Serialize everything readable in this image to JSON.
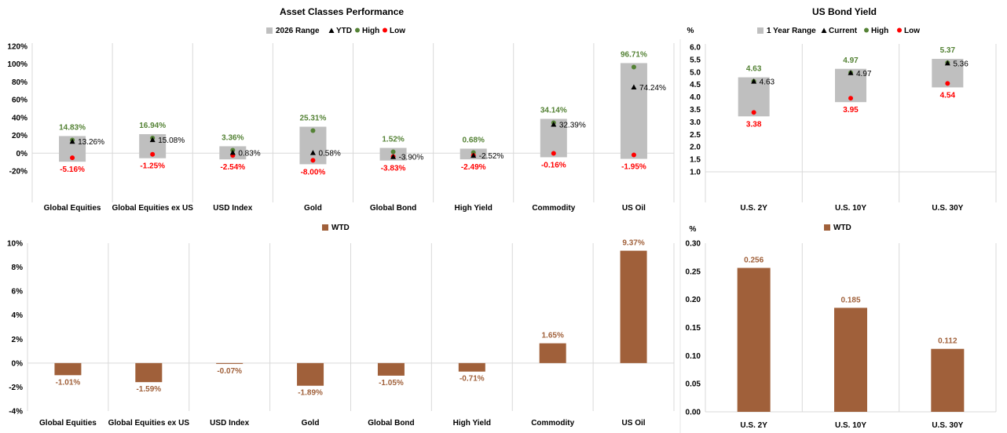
{
  "colors": {
    "range": "#bfbfbf",
    "ytd": "#000000",
    "high": "#548235",
    "low": "#ff0000",
    "wtd": "#a0603a",
    "grid": "#d9d9d9",
    "axis": "#d9d9d9"
  },
  "chart_data": [
    {
      "type": "range",
      "title": "Asset Classes Performance",
      "legend": [
        "2026 Range",
        "YTD",
        "High",
        "Low"
      ],
      "ylim": [
        -20,
        120
      ],
      "yticks": [
        "-20%",
        "0%",
        "20%",
        "40%",
        "60%",
        "80%",
        "100%",
        "120%"
      ],
      "ytick_values": [
        -20,
        0,
        20,
        40,
        60,
        80,
        100,
        120
      ],
      "categories": [
        "Global Equities",
        "Global Equities ex US",
        "USD Index",
        "Gold",
        "Global Bond",
        "High Yield",
        "Commodity",
        "US Oil"
      ],
      "high": [
        14.83,
        16.94,
        3.36,
        25.31,
        1.52,
        0.68,
        34.14,
        96.71
      ],
      "low": [
        -5.16,
        -1.25,
        -2.54,
        -8.0,
        -3.83,
        -2.49,
        -0.16,
        -1.95
      ],
      "ytd": [
        13.26,
        15.08,
        0.83,
        0.58,
        -3.9,
        -2.52,
        32.39,
        74.24
      ],
      "high_labels": [
        "14.83%",
        "16.94%",
        "3.36%",
        "25.31%",
        "1.52%",
        "0.68%",
        "34.14%",
        "96.71%"
      ],
      "low_labels": [
        "-5.16%",
        "-1.25%",
        "-2.54%",
        "-8.00%",
        "-3.83%",
        "-2.49%",
        "-0.16%",
        "-1.95%"
      ],
      "ytd_labels": [
        "13.26%",
        "15.08%",
        "0.83%",
        "0.58%",
        "-3.90%",
        "-2.52%",
        "32.39%",
        "74.24%"
      ]
    },
    {
      "type": "range",
      "title": "US Bond Yield",
      "ylabel": "%",
      "legend": [
        "1 Year Range",
        "Current",
        "High",
        "Low"
      ],
      "ylim": [
        1.0,
        6.0
      ],
      "yticks": [
        "1.0",
        "1.5",
        "2.0",
        "2.5",
        "3.0",
        "3.5",
        "4.0",
        "4.5",
        "5.0",
        "5.5",
        "6.0"
      ],
      "ytick_values": [
        1.0,
        1.5,
        2.0,
        2.5,
        3.0,
        3.5,
        4.0,
        4.5,
        5.0,
        5.5,
        6.0
      ],
      "categories": [
        "U.S. 2Y",
        "U.S. 10Y",
        "U.S. 30Y"
      ],
      "high": [
        4.63,
        4.97,
        5.37
      ],
      "low": [
        3.38,
        3.95,
        4.54
      ],
      "ytd": [
        4.63,
        4.97,
        5.36
      ],
      "high_labels": [
        "4.63",
        "4.97",
        "5.37"
      ],
      "low_labels": [
        "3.38",
        "3.95",
        "4.54"
      ],
      "ytd_labels": [
        "4.63",
        "4.97",
        "5.36"
      ]
    },
    {
      "type": "bar",
      "legend": [
        "WTD"
      ],
      "ylim": [
        -4,
        10
      ],
      "yticks": [
        "-4%",
        "-2%",
        "0%",
        "2%",
        "4%",
        "6%",
        "8%",
        "10%"
      ],
      "ytick_values": [
        -4,
        -2,
        0,
        2,
        4,
        6,
        8,
        10
      ],
      "categories": [
        "Global Equities",
        "Global Equities ex US",
        "USD Index",
        "Gold",
        "Global Bond",
        "High Yield",
        "Commodity",
        "US Oil"
      ],
      "values": [
        -1.01,
        -1.59,
        -0.07,
        -1.89,
        -1.05,
        -0.71,
        1.65,
        9.37
      ],
      "value_labels": [
        "-1.01%",
        "-1.59%",
        "-0.07%",
        "-1.89%",
        "-1.05%",
        "-0.71%",
        "1.65%",
        "9.37%"
      ]
    },
    {
      "type": "bar",
      "ylabel": "%",
      "legend": [
        "WTD"
      ],
      "ylim": [
        0,
        0.3
      ],
      "yticks": [
        "0.00",
        "0.05",
        "0.10",
        "0.15",
        "0.20",
        "0.25",
        "0.30"
      ],
      "ytick_values": [
        0,
        0.05,
        0.1,
        0.15,
        0.2,
        0.25,
        0.3
      ],
      "categories": [
        "U.S. 2Y",
        "U.S. 10Y",
        "U.S. 30Y"
      ],
      "values": [
        0.256,
        0.185,
        0.112
      ],
      "value_labels": [
        "0.256",
        "0.185",
        "0.112"
      ]
    }
  ]
}
